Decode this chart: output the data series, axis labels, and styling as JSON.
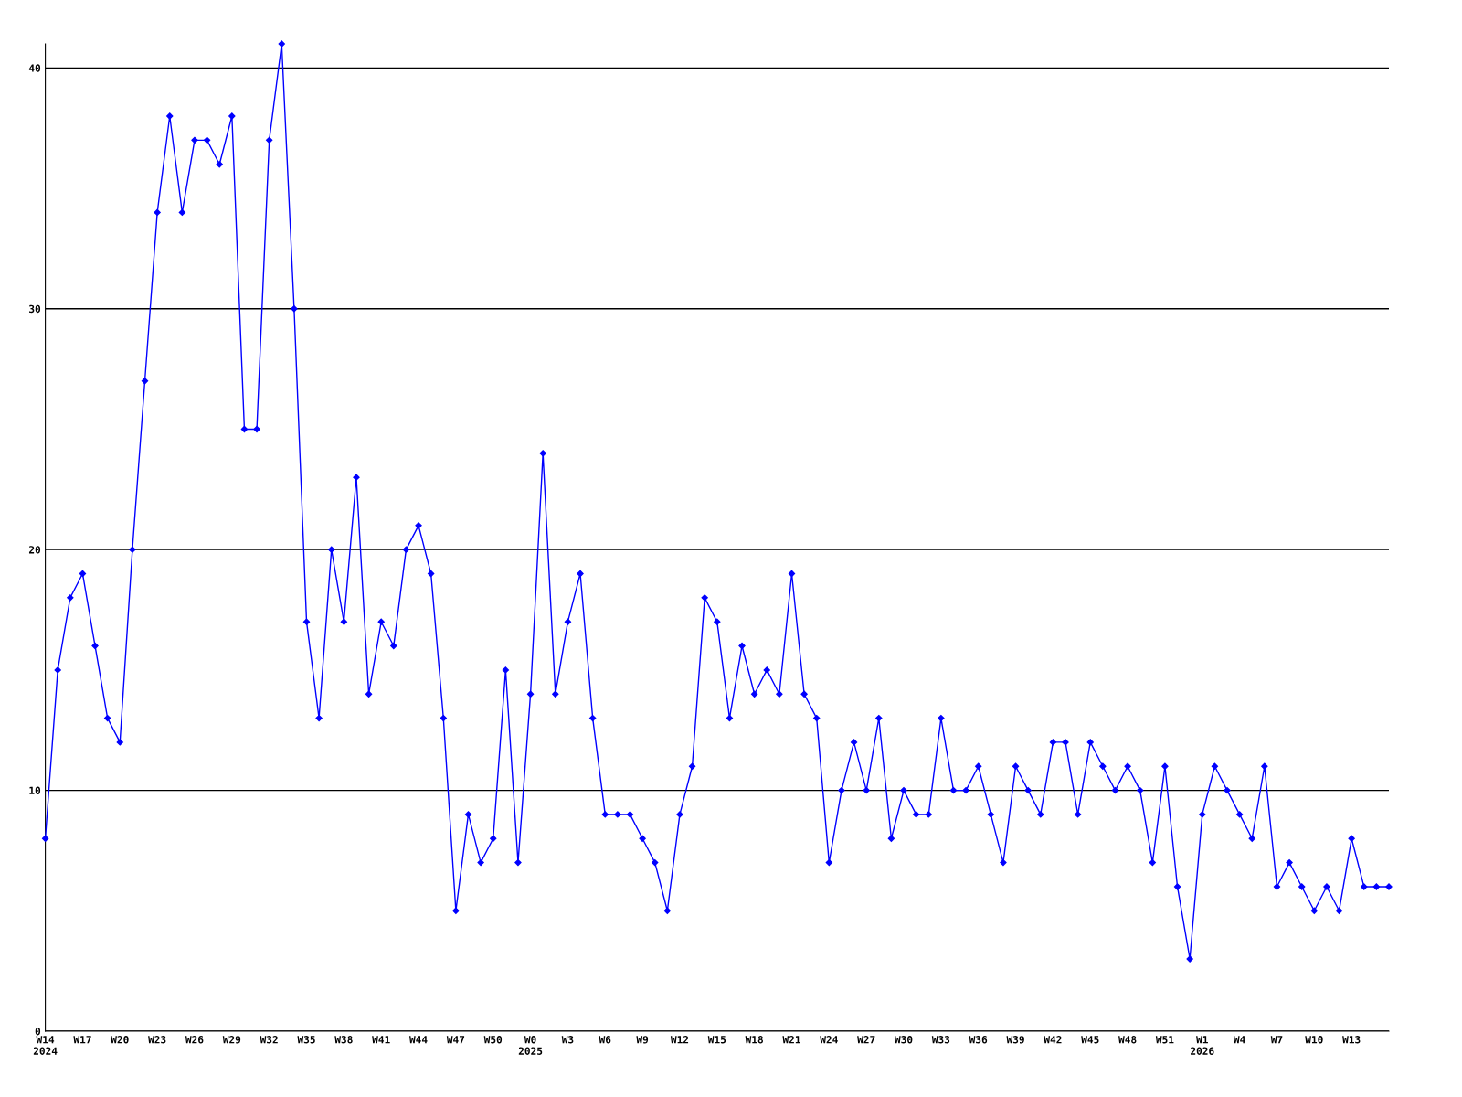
{
  "chart_data": {
    "type": "line",
    "categories": [
      "W14\n2024",
      null,
      null,
      "W17",
      null,
      null,
      "W20",
      null,
      null,
      "W23",
      null,
      null,
      "W26",
      null,
      null,
      "W29",
      null,
      null,
      "W32",
      null,
      null,
      "W35",
      null,
      null,
      "W38",
      null,
      null,
      "W41",
      null,
      null,
      "W44",
      null,
      null,
      "W47",
      null,
      null,
      "W50",
      null,
      null,
      "W0\n2025",
      null,
      null,
      "W3",
      null,
      null,
      "W6",
      null,
      null,
      "W9",
      null,
      null,
      "W12",
      null,
      null,
      "W15",
      null,
      null,
      "W18",
      null,
      null,
      "W21",
      null,
      null,
      "W24",
      null,
      null,
      "W27",
      null,
      null,
      "W30",
      null,
      null,
      "W33",
      null,
      null,
      "W36",
      null,
      null,
      "W39",
      null,
      null,
      "W42",
      null,
      null,
      "W45",
      null,
      null,
      "W48",
      null,
      null,
      "W51",
      null,
      null,
      "W1\n2026",
      null,
      null,
      "W4",
      null,
      null,
      "W7",
      null,
      null,
      "W10",
      null,
      null,
      "W13",
      null,
      null,
      null
    ],
    "series": [
      {
        "color": "#0000ff",
        "values": [
          8,
          15,
          18,
          19,
          16,
          13,
          12,
          20,
          27,
          34,
          38,
          34,
          37,
          37,
          36,
          38,
          25,
          25,
          37,
          41,
          30,
          17,
          13,
          20,
          17,
          23,
          14,
          17,
          16,
          20,
          21,
          19,
          13,
          5,
          9,
          7,
          8,
          15,
          7,
          14,
          24,
          14,
          17,
          19,
          13,
          9,
          9,
          9,
          8,
          7,
          5,
          9,
          11,
          18,
          17,
          13,
          16,
          14,
          15,
          14,
          19,
          14,
          13,
          7,
          10,
          12,
          10,
          13,
          8,
          10,
          9,
          9,
          13,
          10,
          10,
          11,
          9,
          7,
          11,
          10,
          9,
          12,
          12,
          9,
          12,
          11,
          10,
          11,
          10,
          7,
          11,
          6,
          3,
          9,
          11,
          10,
          9,
          8,
          11,
          6,
          7,
          6,
          5,
          6,
          5,
          8,
          6,
          6,
          6
        ]
      }
    ],
    "ylim": [
      0,
      41
    ],
    "yticks": [
      0,
      10,
      20,
      30,
      40
    ],
    "grid": "y",
    "marker": "diamond",
    "line_style": "solid",
    "legend": false
  }
}
